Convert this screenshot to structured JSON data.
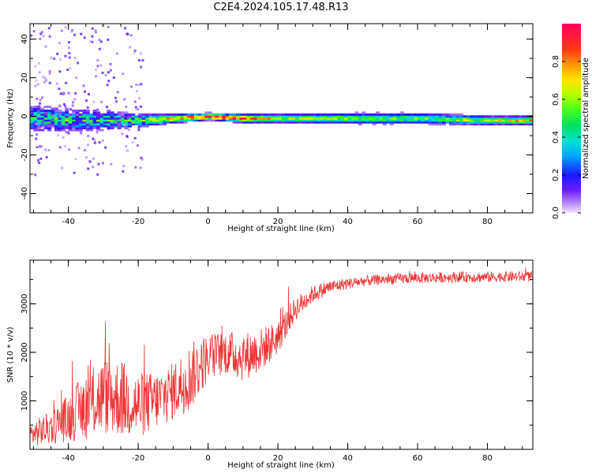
{
  "title": "C2E4.2024.105.17.48.R13",
  "colors": {
    "snr_line": "#ee3333",
    "frame": "#000000"
  },
  "chart_data": [
    {
      "type": "heatmap",
      "xlabel": "Height of straight line (km)",
      "ylabel": "Frequency (Hz)",
      "xlim": [
        -51,
        93
      ],
      "ylim": [
        -50,
        48
      ],
      "xticks": [
        -40,
        -20,
        0,
        20,
        40,
        60,
        80
      ],
      "yticks": [
        -40,
        -20,
        0,
        20,
        40
      ],
      "colorbar": {
        "label": "Normalized spectral amplitude",
        "range": [
          0.0,
          1.0
        ],
        "ticks": [
          "0.0",
          "0.2",
          "0.4",
          "0.6",
          "0.8"
        ],
        "tick_values": [
          0.0,
          0.2,
          0.4,
          0.6,
          0.8
        ]
      },
      "band": [
        {
          "x": -50,
          "f_center": -1,
          "width": 12,
          "peak": 0.45
        },
        {
          "x": -40,
          "f_center": -2,
          "width": 10,
          "peak": 0.5
        },
        {
          "x": -30,
          "f_center": -2,
          "width": 9,
          "peak": 0.5
        },
        {
          "x": -20,
          "f_center": -2,
          "width": 6,
          "peak": 0.55
        },
        {
          "x": -10,
          "f_center": -1,
          "width": 4,
          "peak": 0.75
        },
        {
          "x": 0,
          "f_center": 0,
          "width": 3,
          "peak": 0.95
        },
        {
          "x": 10,
          "f_center": -1,
          "width": 4,
          "peak": 0.85
        },
        {
          "x": 20,
          "f_center": -1,
          "width": 4,
          "peak": 0.6
        },
        {
          "x": 40,
          "f_center": -1,
          "width": 5,
          "peak": 0.55
        },
        {
          "x": 60,
          "f_center": -1,
          "width": 5,
          "peak": 0.5
        },
        {
          "x": 80,
          "f_center": -2,
          "width": 4,
          "peak": 0.6
        },
        {
          "x": 92,
          "f_center": -2,
          "width": 4,
          "peak": 0.7
        }
      ]
    },
    {
      "type": "line",
      "xlabel": "Height of straight line (km)",
      "ylabel": "SNR (10 * v/v)",
      "xlim": [
        -51,
        93
      ],
      "ylim": [
        0,
        3900
      ],
      "xticks": [
        -40,
        -20,
        0,
        20,
        40,
        60,
        80
      ],
      "yticks": [
        1000,
        2000,
        3000
      ],
      "series": [
        {
          "x": [
            -51,
            -45,
            -40,
            -35,
            -30,
            -25,
            -20,
            -15,
            -10,
            -5,
            0,
            5,
            10,
            15,
            20,
            25,
            30,
            35,
            40,
            45,
            50,
            55,
            60,
            65,
            70,
            75,
            80,
            85,
            90,
            93
          ],
          "values": [
            300,
            450,
            650,
            900,
            1100,
            1050,
            900,
            1000,
            1200,
            1500,
            1900,
            2000,
            1900,
            2050,
            2300,
            2900,
            3200,
            3350,
            3420,
            3470,
            3500,
            3520,
            3530,
            3540,
            3550,
            3550,
            3550,
            3560,
            3560,
            3560
          ],
          "noise_amplitude": [
            250,
            350,
            500,
            700,
            800,
            800,
            700,
            600,
            600,
            700,
            500,
            450,
            500,
            450,
            350,
            250,
            180,
            140,
            120,
            110,
            110,
            110,
            110,
            110,
            110,
            110,
            110,
            110,
            110,
            110
          ]
        }
      ]
    }
  ]
}
